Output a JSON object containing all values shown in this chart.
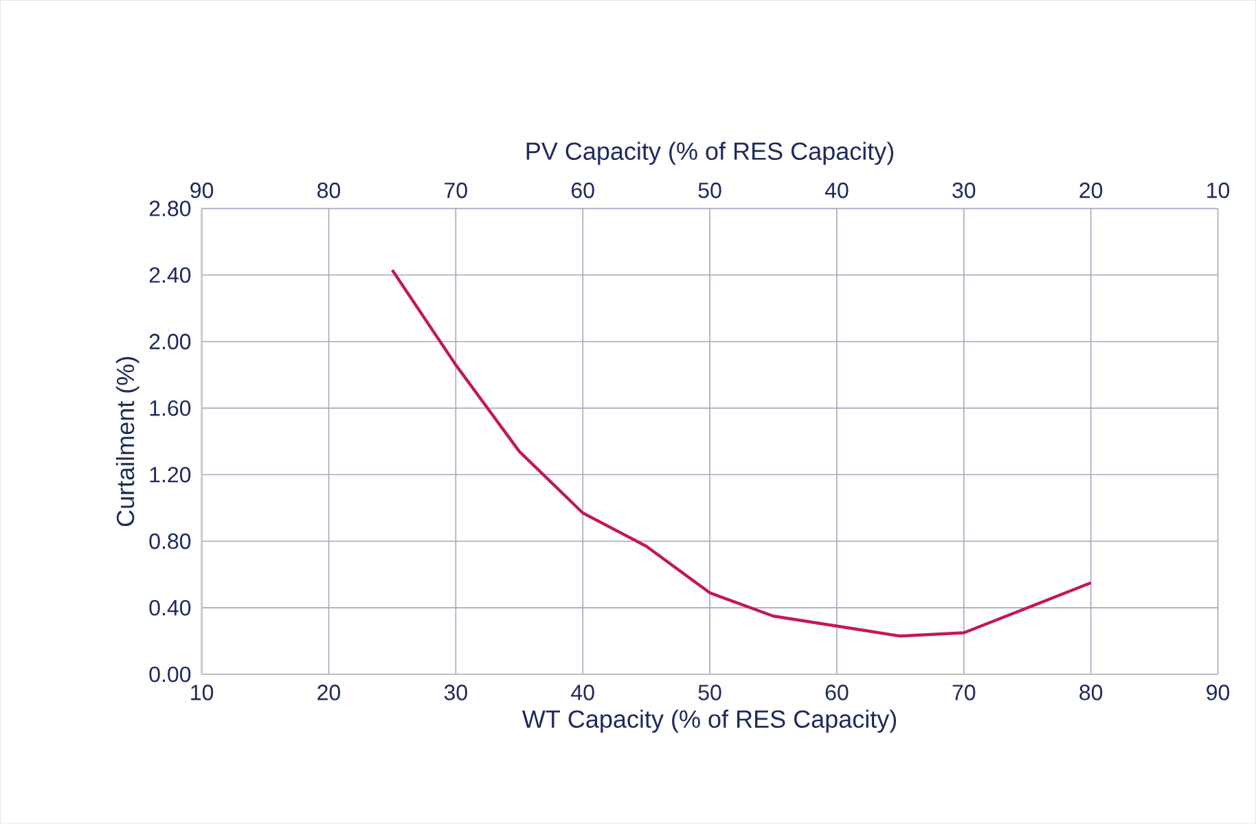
{
  "chart_data": {
    "type": "line",
    "xlabel": "WT Capacity (% of RES Capacity)",
    "x2label": "PV Capacity (% of RES Capacity)",
    "ylabel": "Curtailment (%)",
    "x": [
      25,
      30,
      35,
      40,
      45,
      50,
      55,
      60,
      65,
      70,
      80
    ],
    "series": [
      {
        "color": "#c2185b",
        "values": [
          2.43,
          1.86,
          1.34,
          0.97,
          0.77,
          0.49,
          0.35,
          0.29,
          0.23,
          0.25,
          0.55
        ]
      }
    ],
    "xlim": [
      10,
      90
    ],
    "xticks": [
      10,
      20,
      30,
      40,
      50,
      60,
      70,
      80,
      90
    ],
    "x2lim": [
      90,
      10
    ],
    "x2ticks": [
      90,
      80,
      70,
      60,
      50,
      40,
      30,
      20,
      10
    ],
    "ylim": [
      0,
      2.8
    ],
    "yticks": [
      {
        "value": 0,
        "label": "0.00"
      },
      {
        "value": 0.4,
        "label": "0.40"
      },
      {
        "value": 0.8,
        "label": "0.80"
      },
      {
        "value": 1.2,
        "label": "1.20"
      },
      {
        "value": 1.6,
        "label": "1.60"
      },
      {
        "value": 2.0,
        "label": "2.00"
      },
      {
        "value": 2.4,
        "label": "2.40"
      },
      {
        "value": 2.8,
        "label": "2.80"
      }
    ],
    "grid": true,
    "marker": "none",
    "line_style": "solid"
  }
}
